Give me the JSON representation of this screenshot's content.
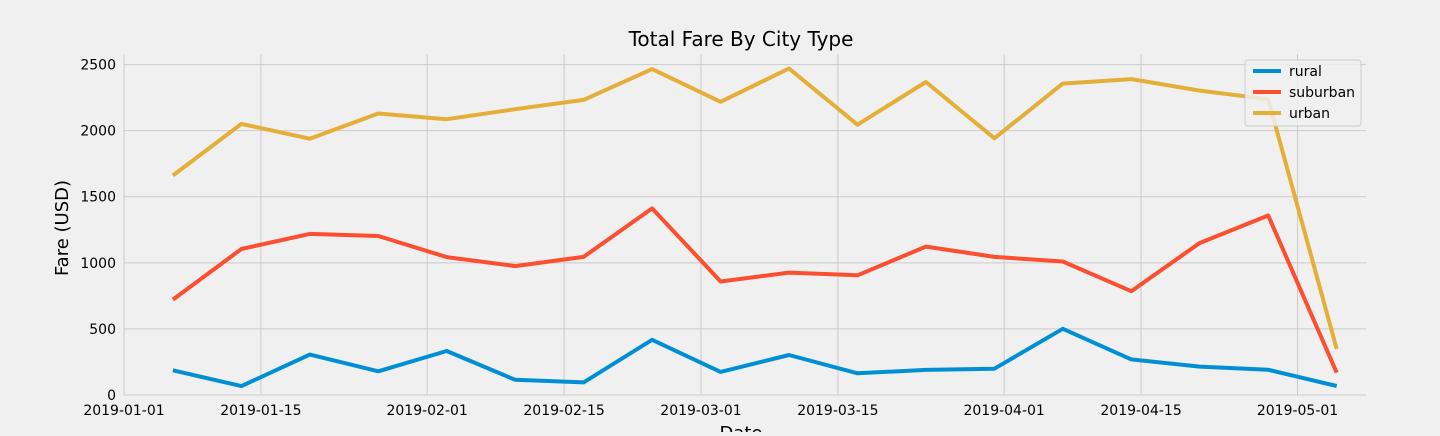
{
  "chart_data": {
    "type": "line",
    "title": "Total Fare By City Type",
    "xlabel": "Date",
    "ylabel": "Fare (USD)",
    "grid": true,
    "legend_position": "top-right",
    "x_axis_type": "date",
    "xlim": [
      "2019-01-01",
      "2019-05-08"
    ],
    "ylim": [
      0,
      2580
    ],
    "x_ticks": [
      "2019-01-01",
      "2019-01-15",
      "2019-02-01",
      "2019-02-15",
      "2019-03-01",
      "2019-03-15",
      "2019-04-01",
      "2019-04-15",
      "2019-05-01"
    ],
    "y_ticks": [
      0,
      500,
      1000,
      1500,
      2000,
      2500
    ],
    "x": [
      "2019-01-06",
      "2019-01-13",
      "2019-01-20",
      "2019-01-27",
      "2019-02-03",
      "2019-02-10",
      "2019-02-17",
      "2019-02-24",
      "2019-03-03",
      "2019-03-10",
      "2019-03-17",
      "2019-03-24",
      "2019-03-31",
      "2019-04-07",
      "2019-04-14",
      "2019-04-21",
      "2019-04-28",
      "2019-05-05"
    ],
    "series": [
      {
        "name": "rural",
        "color": "#008fd5",
        "values": [
          187,
          67,
          306,
          179,
          333,
          115,
          95,
          418,
          175,
          303,
          164,
          190,
          199,
          501,
          269,
          215,
          191,
          68
        ]
      },
      {
        "name": "suburban",
        "color": "#fc4f30",
        "values": [
          722,
          1105,
          1219,
          1203,
          1043,
          975,
          1045,
          1412,
          859,
          926,
          906,
          1123,
          1045,
          1010,
          785,
          1150,
          1358,
          169
        ]
      },
      {
        "name": "urban",
        "color": "#e5ae38",
        "values": [
          1661,
          2051,
          1939,
          2130,
          2087,
          2162,
          2233,
          2466,
          2218,
          2470,
          2045,
          2368,
          1942,
          2356,
          2390,
          2303,
          2238,
          348
        ]
      }
    ]
  }
}
